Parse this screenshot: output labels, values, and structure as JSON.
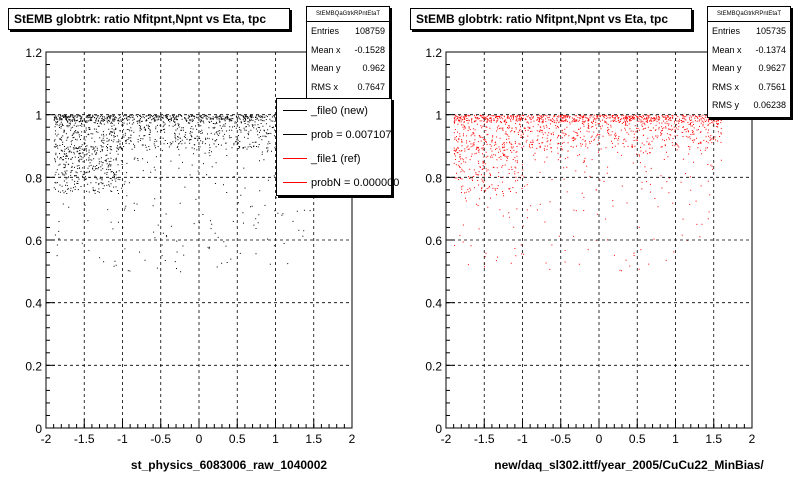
{
  "chart_data": [
    {
      "type": "scatter",
      "title": "StEMB globtrk: ratio Nfitpnt,Npnt vs Eta, tpc",
      "xlabel": "st_physics_6083006_raw_1040002",
      "ylabel": "",
      "xlim": [
        -2,
        2
      ],
      "ylim": [
        0,
        1.2
      ],
      "x_ticks": [
        "-2",
        "-1.5",
        "-1",
        "-0.5",
        "0",
        "0.5",
        "1",
        "1.5",
        "2"
      ],
      "y_ticks": [
        "0",
        "0.2",
        "0.4",
        "0.6",
        "0.8",
        "1",
        "1.2"
      ],
      "grid": true,
      "marker_color": "#000000",
      "stats": {
        "header": "StEMBQaGtrkRPntEtaT",
        "rows": [
          {
            "label": "Entries",
            "value": "108759"
          },
          {
            "label": "Mean x",
            "value": "-0.1528"
          },
          {
            "label": "Mean y",
            "value": "0.962"
          },
          {
            "label": "RMS x",
            "value": "0.7647"
          }
        ]
      },
      "legend": [
        {
          "label": "_file0 (new)",
          "color": "#000000"
        },
        {
          "label": "prob = 0.007107",
          "color": "#000000"
        },
        {
          "label": "_file1 (ref)",
          "color": "#ff0000"
        },
        {
          "label": "probN = 0.000000",
          "color": "#ff0000"
        }
      ],
      "series": [
        {
          "bands": [
            {
              "x": [
                -1.9,
                1.55
              ],
              "y": [
                0.98,
                1.0
              ],
              "density": "saturated"
            },
            {
              "x": [
                -1.9,
                1.5
              ],
              "y": [
                0.9,
                0.98
              ],
              "density": "high"
            },
            {
              "x": [
                -1.9,
                -1.0
              ],
              "y": [
                0.75,
                0.9
              ],
              "density": "high"
            },
            {
              "x": [
                -1.9,
                1.5
              ],
              "y": [
                0.5,
                0.9
              ],
              "density": "low"
            }
          ]
        }
      ]
    },
    {
      "type": "scatter",
      "title": "StEMB globtrk: ratio Nfitpnt,Npnt vs Eta, tpc",
      "xlabel": "new/daq_sl302.ittf/year_2005/CuCu22_MinBias/",
      "ylabel": "",
      "xlim": [
        -2,
        2
      ],
      "ylim": [
        0,
        1.2
      ],
      "x_ticks": [
        "-2",
        "-1.5",
        "-1",
        "-0.5",
        "0",
        "0.5",
        "1",
        "1.5",
        "2"
      ],
      "y_ticks": [
        "0",
        "0.2",
        "0.4",
        "0.6",
        "0.8",
        "1",
        "1.2"
      ],
      "grid": true,
      "marker_color": "#ff0000",
      "stats": {
        "header": "StEMBQaGtrkRPntEtaT",
        "rows": [
          {
            "label": "Entries",
            "value": "105735"
          },
          {
            "label": "Mean x",
            "value": "-0.1374"
          },
          {
            "label": "Mean y",
            "value": "0.9627"
          },
          {
            "label": "RMS x",
            "value": "0.7561"
          },
          {
            "label": "RMS y",
            "value": "0.06238"
          }
        ]
      },
      "series": [
        {
          "bands": [
            {
              "x": [
                -1.9,
                1.6
              ],
              "y": [
                0.98,
                1.0
              ],
              "density": "saturated"
            },
            {
              "x": [
                -1.9,
                1.6
              ],
              "y": [
                0.9,
                0.98
              ],
              "density": "high"
            },
            {
              "x": [
                -1.9,
                -1.0
              ],
              "y": [
                0.75,
                0.9
              ],
              "density": "medium"
            },
            {
              "x": [
                -1.9,
                1.6
              ],
              "y": [
                0.5,
                0.9
              ],
              "density": "low"
            }
          ]
        }
      ]
    }
  ]
}
